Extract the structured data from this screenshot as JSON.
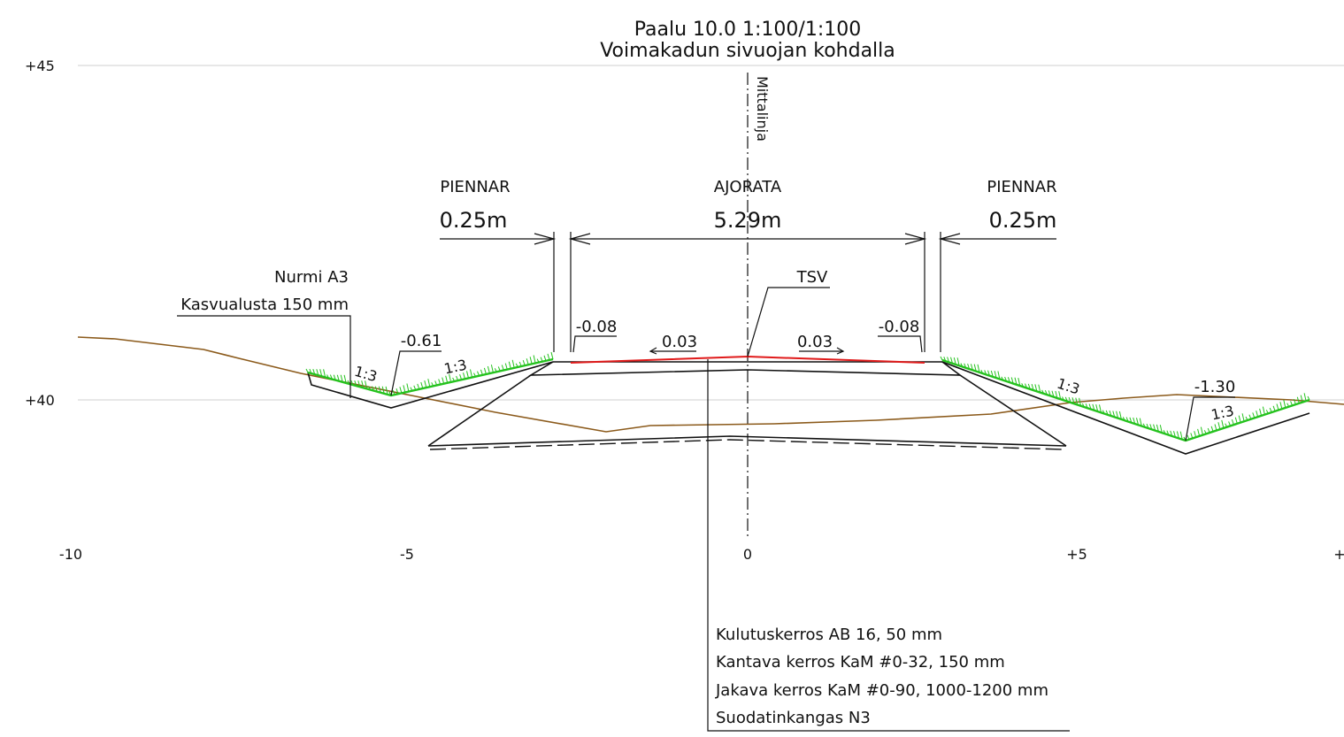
{
  "title": {
    "line1": "Paalu 10.0   1:100/1:100",
    "line2": "Voimakadun sivuojan kohdalla"
  },
  "elevation_labels": [
    "+45",
    "+40"
  ],
  "x_ticks": [
    "-10",
    "-5",
    "0",
    "+5",
    "+"
  ],
  "centerline_label": "Mittalinja",
  "sections": {
    "left": {
      "name": "PIENNAR",
      "width": "0.25m"
    },
    "middle": {
      "name": "AJORATA",
      "width": "5.29m"
    },
    "right": {
      "name": "PIENNAR",
      "width": "0.25m"
    }
  },
  "tsv_label": "TSV",
  "grass_callout": {
    "line1": "Nurmi A3",
    "line2": "Kasvualusta 150 mm"
  },
  "values": {
    "ditch_left": "-0.61",
    "ditch_right": "-1.30",
    "edge_left": "-0.08",
    "edge_right": "-0.08",
    "slope_left": "0.03",
    "slope_right": "0.03"
  },
  "slope_ratios": {
    "left_outer": "1:3",
    "left_inner": "1:3",
    "right_inner": "1:3",
    "right_outer": "1:3"
  },
  "layers": [
    "Kulutuskerros AB 16, 50 mm",
    "Kantava kerros KaM #0-32, 150 mm",
    "Jakava kerros KaM #0-90, 1000-1200 mm",
    "Suodatinkangas N3"
  ],
  "colors": {
    "ground_line": "#8b5a1b",
    "pavement": "#e01a1a",
    "grass": "#25c21e",
    "grid": "#cfcfcf"
  }
}
